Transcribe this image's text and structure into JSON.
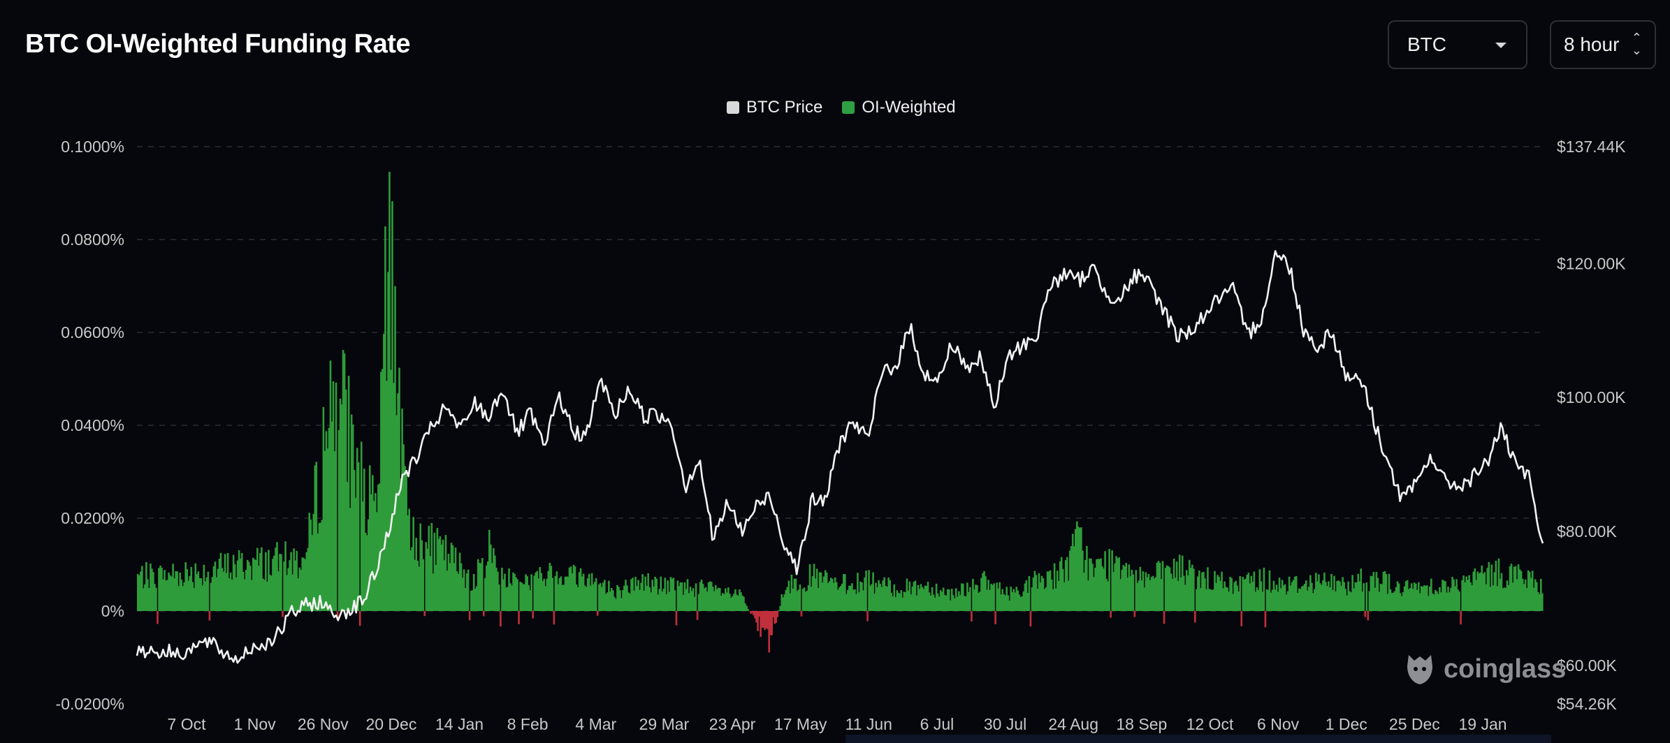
{
  "header": {
    "title": "BTC OI-Weighted Funding Rate",
    "coin_select": "BTC",
    "interval_select": "8 hour"
  },
  "legend": [
    {
      "label": "BTC Price",
      "color": "#d9d9d9"
    },
    {
      "label": "OI-Weighted",
      "color": "#2ea043"
    }
  ],
  "watermark": "coinglass",
  "colors": {
    "background": "#06070c",
    "price_line": "#f2f2f2",
    "funding_positive": "#2e9c3a",
    "funding_negative": "#c0303c",
    "grid": "#2a2d33"
  },
  "chart_data": {
    "type": "line",
    "x_tick_labels": [
      "7 Oct",
      "1 Nov",
      "26 Nov",
      "20 Dec",
      "14 Jan",
      "8 Feb",
      "4 Mar",
      "29 Mar",
      "23 Apr",
      "17 May",
      "11 Jun",
      "6 Jul",
      "30 Jul",
      "24 Aug",
      "18 Sep",
      "12 Oct",
      "6 Nov",
      "1 Dec",
      "25 Dec",
      "19 Jan"
    ],
    "y_left_ticks": [
      "0.1000%",
      "0.0800%",
      "0.0600%",
      "0.0400%",
      "0.0200%",
      "0%",
      "-0.0200%"
    ],
    "y_left_range": [
      -0.02,
      0.1
    ],
    "y_right_ticks": [
      "$137.44K",
      "$120.00K",
      "$100.00K",
      "$80.00K",
      "$60.00K",
      "$54.26K"
    ],
    "y_right_values": [
      137.44,
      120,
      100,
      80,
      60,
      54.26
    ],
    "grid": "dashed horizontal",
    "legend_position": "top-center",
    "series": [
      {
        "name": "BTC Price",
        "axis": "right",
        "unit": "$K",
        "x_index": [
          0,
          3,
          5,
          7,
          8,
          9,
          10,
          11,
          12,
          13,
          14,
          15,
          16,
          17,
          18,
          19,
          20,
          21,
          22,
          23,
          24,
          25,
          26,
          27,
          28,
          29,
          30,
          31,
          32,
          33,
          34,
          35,
          36,
          37,
          38,
          39,
          40,
          41,
          42,
          43,
          44,
          45,
          46,
          47,
          48,
          49,
          50,
          51,
          52,
          53,
          54,
          55,
          56,
          57,
          58,
          59,
          60,
          61,
          62,
          63,
          64,
          65,
          66,
          67,
          68,
          69,
          70,
          71,
          72,
          73,
          74,
          75,
          76,
          77,
          78,
          79,
          80,
          81,
          82,
          83,
          84,
          85,
          86,
          87,
          88,
          89,
          90,
          91,
          92,
          93,
          94,
          95,
          96,
          97,
          98,
          99,
          100
        ],
        "values": [
          62.4,
          61.8,
          63.5,
          60.8,
          62.5,
          63.2,
          64.5,
          67.8,
          68.9,
          69.6,
          67.5,
          68.3,
          69.5,
          74.0,
          81.0,
          88.5,
          91.2,
          95.8,
          98.5,
          95.0,
          99.2,
          97.0,
          101.5,
          94.6,
          97.6,
          92.3,
          100.5,
          94.8,
          94.5,
          102.8,
          97.3,
          101.5,
          97.3,
          97.4,
          96.5,
          86.7,
          91.0,
          78.5,
          84.4,
          80.0,
          83.5,
          85.5,
          78.6,
          74.5,
          84.5,
          84.8,
          93.5,
          96.5,
          93.5,
          104.0,
          104.8,
          110.5,
          103.5,
          102.3,
          108.3,
          104.4,
          105.8,
          98.5,
          106.1,
          107.8,
          109.2,
          117.0,
          118.3,
          117.5,
          119.3,
          115.3,
          115.0,
          118.2,
          117.0,
          113.3,
          109.2,
          110.0,
          112.5,
          115.0,
          116.0,
          109.2,
          112.0,
          121.6,
          119.5,
          110.0,
          107.5,
          110.0,
          103.0,
          103.2,
          96.5,
          90.0,
          84.7,
          87.0,
          91.5,
          87.5,
          86.8,
          88.0,
          90.2,
          95.6,
          90.0,
          88.0,
          77.5
        ]
      },
      {
        "name": "OI-Weighted",
        "axis": "left",
        "unit": "%",
        "x_index": [
          0,
          4,
          8,
          12,
          14,
          16,
          17,
          18,
          19,
          20,
          22,
          24,
          25,
          26,
          28,
          30,
          32,
          34,
          36,
          37,
          40,
          43,
          45,
          46,
          48,
          50,
          52,
          54,
          56,
          58,
          60,
          62,
          64,
          66,
          67,
          68,
          69,
          70,
          72,
          74,
          76,
          78,
          80,
          82,
          84,
          86,
          88,
          90,
          92,
          94,
          96,
          98,
          100
        ],
        "values": [
          0.008,
          0.009,
          0.011,
          0.012,
          0.0535,
          0.028,
          0.021,
          0.0905,
          0.025,
          0.016,
          0.013,
          0.007,
          0.0145,
          0.008,
          0.007,
          0.009,
          0.0078,
          0.0045,
          0.007,
          0.006,
          0.0055,
          0.0035,
          -0.0095,
          0.0055,
          0.008,
          0.006,
          0.007,
          0.005,
          0.006,
          0.004,
          0.007,
          0.004,
          0.007,
          0.0095,
          0.0165,
          0.009,
          0.011,
          0.012,
          0.0075,
          0.01,
          0.0075,
          0.006,
          0.0075,
          0.006,
          0.007,
          0.006,
          0.008,
          0.005,
          0.006,
          0.006,
          0.0085,
          0.009,
          0.0055
        ]
      }
    ]
  }
}
